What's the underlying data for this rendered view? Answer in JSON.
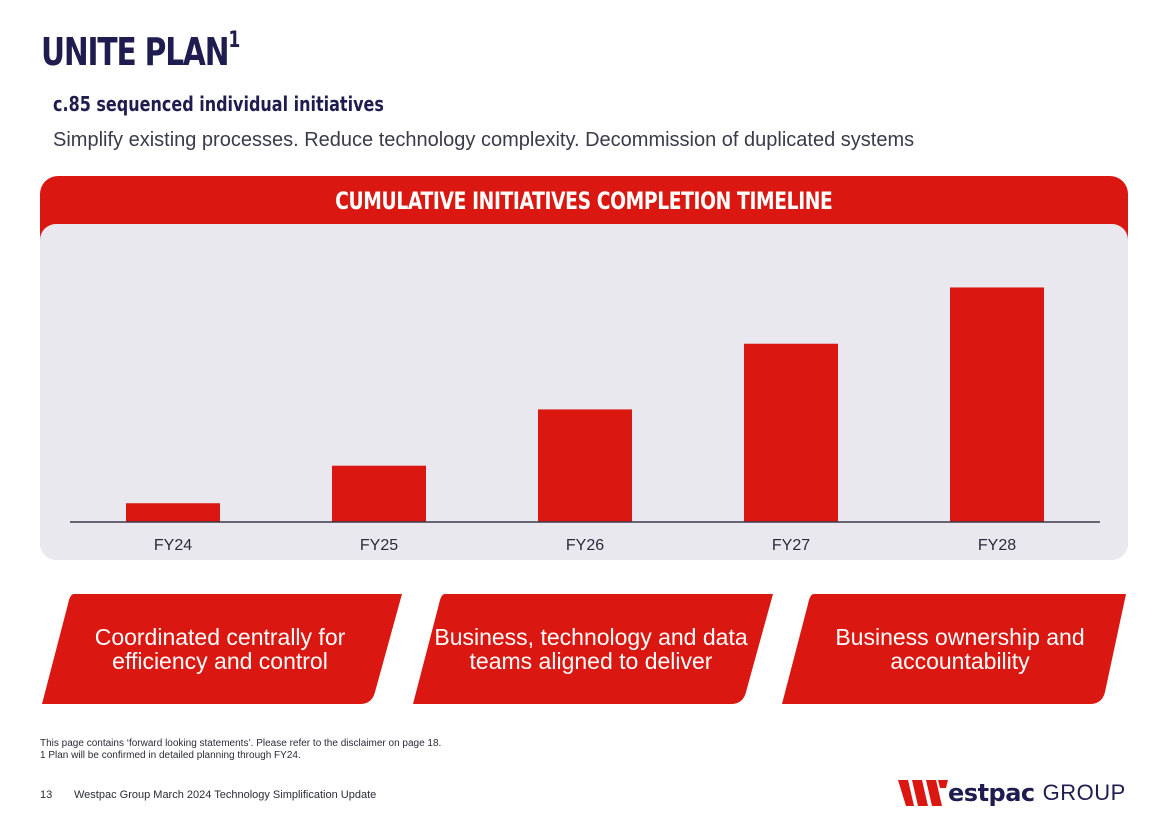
{
  "header": {
    "title": "UNITE PLAN",
    "title_sup": "1",
    "subtitle": "c.85 sequenced individual initiatives",
    "description": "Simplify existing processes. Reduce technology complexity. Decommission of duplicated systems"
  },
  "chart_data": {
    "type": "bar",
    "title": "CUMULATIVE INITIATIVES COMPLETION TIMELINE",
    "categories": [
      "FY24",
      "FY25",
      "FY26",
      "FY27",
      "FY28"
    ],
    "values": [
      8,
      24,
      48,
      76,
      100
    ],
    "ylim": [
      0,
      110
    ],
    "xlabel": "",
    "ylabel": "",
    "grid": false,
    "color": "#da1710"
  },
  "callouts": [
    "Coordinated centrally for efficiency and control",
    "Business, technology and data teams aligned to deliver",
    "Business ownership and accountability"
  ],
  "footnotes": {
    "disclaimer": "This page contains ‘forward looking statements’. Please refer to the disclaimer on page 18.",
    "note1": "1 Plan will be confirmed in detailed planning through FY24."
  },
  "footer": {
    "page_number": "13",
    "doc_title": "Westpac Group March 2024 Technology Simplification Update",
    "logo_word": "estpac",
    "logo_group": "GROUP"
  },
  "colors": {
    "brand_red": "#da1710",
    "navy": "#1f1c4f",
    "panel_bg": "#e9e8ee"
  }
}
